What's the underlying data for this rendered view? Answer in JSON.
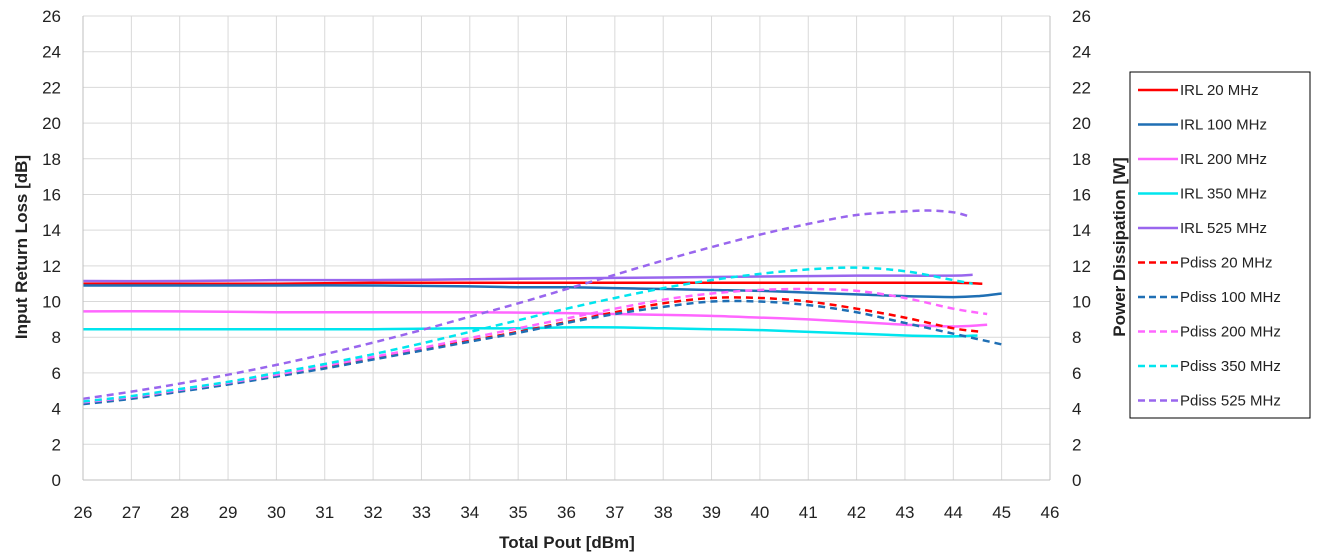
{
  "chart_data": {
    "type": "line",
    "title": "",
    "xlabel": "Total Pout [dBm]",
    "ylabel": "Input Return Loss [dB]",
    "y2label": "Power Dissipation [W]",
    "xlim": [
      26,
      46
    ],
    "ylim": [
      0,
      26
    ],
    "y2lim": [
      0,
      26
    ],
    "x_ticks": [
      26,
      27,
      28,
      29,
      30,
      31,
      32,
      33,
      34,
      35,
      36,
      37,
      38,
      39,
      40,
      41,
      42,
      43,
      44,
      45,
      46
    ],
    "y_ticks": [
      0,
      2,
      4,
      6,
      8,
      10,
      12,
      14,
      16,
      18,
      20,
      22,
      24,
      26
    ],
    "y2_ticks": [
      0,
      2,
      4,
      6,
      8,
      10,
      12,
      14,
      16,
      18,
      20,
      22,
      24,
      26
    ],
    "grid": true,
    "legend_position": "right",
    "series": [
      {
        "name": "IRL 20 MHz",
        "color": "#ff0000",
        "dashed": false,
        "axis": "left",
        "x": [
          26,
          28,
          30,
          32,
          34,
          36,
          38,
          40,
          42,
          43,
          44,
          44.6
        ],
        "y": [
          11.0,
          11.0,
          11.0,
          11.05,
          11.05,
          11.05,
          11.05,
          11.05,
          11.05,
          11.05,
          11.05,
          11.0
        ]
      },
      {
        "name": "IRL 100 MHz",
        "color": "#1f6fb4",
        "dashed": false,
        "axis": "left",
        "x": [
          26,
          28,
          30,
          32,
          34,
          35,
          36,
          37,
          38,
          39,
          40,
          41,
          42,
          43,
          44,
          44.5,
          45
        ],
        "y": [
          10.9,
          10.9,
          10.9,
          10.9,
          10.85,
          10.8,
          10.8,
          10.75,
          10.7,
          10.65,
          10.6,
          10.5,
          10.4,
          10.3,
          10.25,
          10.3,
          10.45
        ]
      },
      {
        "name": "IRL 200 MHz",
        "color": "#ff66ff",
        "dashed": false,
        "axis": "left",
        "x": [
          26,
          28,
          30,
          32,
          34,
          36,
          37,
          38,
          39,
          40,
          41,
          42,
          43,
          44,
          44.7
        ],
        "y": [
          9.45,
          9.45,
          9.4,
          9.4,
          9.4,
          9.35,
          9.3,
          9.25,
          9.2,
          9.1,
          9.0,
          8.85,
          8.7,
          8.6,
          8.7
        ]
      },
      {
        "name": "IRL 350 MHz",
        "color": "#00e5ee",
        "dashed": false,
        "axis": "left",
        "x": [
          26,
          28,
          30,
          32,
          34,
          35,
          36,
          37,
          38,
          39,
          40,
          41,
          42,
          43,
          44,
          44.5
        ],
        "y": [
          8.45,
          8.45,
          8.45,
          8.45,
          8.5,
          8.5,
          8.55,
          8.55,
          8.5,
          8.45,
          8.4,
          8.3,
          8.2,
          8.1,
          8.05,
          8.1
        ]
      },
      {
        "name": "IRL 525 MHz",
        "color": "#9966ee",
        "dashed": false,
        "axis": "left",
        "x": [
          26,
          28,
          30,
          32,
          34,
          36,
          38,
          40,
          42,
          43,
          44,
          44.4
        ],
        "y": [
          11.15,
          11.15,
          11.2,
          11.2,
          11.25,
          11.3,
          11.35,
          11.4,
          11.45,
          11.45,
          11.45,
          11.5
        ]
      },
      {
        "name": "Pdiss 20 MHz",
        "color": "#ff0000",
        "dashed": true,
        "axis": "right",
        "x": [
          26,
          27,
          28,
          29,
          30,
          31,
          32,
          33,
          34,
          35,
          36,
          37,
          38,
          39,
          40,
          41,
          42,
          43,
          44,
          44.6
        ],
        "y": [
          4.3,
          4.6,
          5.0,
          5.4,
          5.85,
          6.3,
          6.8,
          7.3,
          7.8,
          8.3,
          8.85,
          9.4,
          9.9,
          10.2,
          10.2,
          10.0,
          9.6,
          9.1,
          8.5,
          8.3
        ]
      },
      {
        "name": "Pdiss 100 MHz",
        "color": "#1f6fb4",
        "dashed": true,
        "axis": "right",
        "x": [
          26,
          27,
          28,
          29,
          30,
          31,
          32,
          33,
          34,
          35,
          36,
          37,
          38,
          39,
          40,
          41,
          42,
          43,
          44,
          45
        ],
        "y": [
          4.25,
          4.55,
          4.95,
          5.35,
          5.8,
          6.25,
          6.75,
          7.25,
          7.75,
          8.25,
          8.8,
          9.3,
          9.7,
          10.0,
          10.0,
          9.8,
          9.4,
          8.8,
          8.2,
          7.6
        ]
      },
      {
        "name": "Pdiss 200 MHz",
        "color": "#ff66ff",
        "dashed": true,
        "axis": "right",
        "x": [
          26,
          27,
          28,
          29,
          30,
          31,
          32,
          33,
          34,
          35,
          36,
          37,
          38,
          39,
          40,
          41,
          42,
          43,
          44,
          44.7
        ],
        "y": [
          4.35,
          4.65,
          5.05,
          5.45,
          5.9,
          6.4,
          6.9,
          7.4,
          7.95,
          8.5,
          9.05,
          9.6,
          10.1,
          10.45,
          10.65,
          10.7,
          10.6,
          10.2,
          9.6,
          9.3
        ]
      },
      {
        "name": "Pdiss 350 MHz",
        "color": "#00e5ee",
        "dashed": true,
        "axis": "right",
        "x": [
          26,
          27,
          28,
          29,
          30,
          31,
          32,
          33,
          34,
          35,
          36,
          37,
          38,
          39,
          40,
          41,
          42,
          43,
          44,
          44.4
        ],
        "y": [
          4.4,
          4.7,
          5.1,
          5.5,
          6.0,
          6.5,
          7.05,
          7.65,
          8.3,
          8.95,
          9.6,
          10.2,
          10.75,
          11.2,
          11.55,
          11.8,
          11.9,
          11.7,
          11.2,
          11.0
        ]
      },
      {
        "name": "Pdiss 525 MHz",
        "color": "#9966ee",
        "dashed": true,
        "axis": "right",
        "x": [
          26,
          27,
          28,
          29,
          30,
          31,
          32,
          33,
          34,
          35,
          36,
          37,
          38,
          39,
          40,
          41,
          42,
          43,
          43.5,
          44,
          44.3
        ],
        "y": [
          4.55,
          4.95,
          5.4,
          5.9,
          6.45,
          7.05,
          7.7,
          8.4,
          9.15,
          9.9,
          10.7,
          11.5,
          12.3,
          13.05,
          13.75,
          14.35,
          14.85,
          15.05,
          15.1,
          15.0,
          14.8
        ]
      }
    ]
  }
}
